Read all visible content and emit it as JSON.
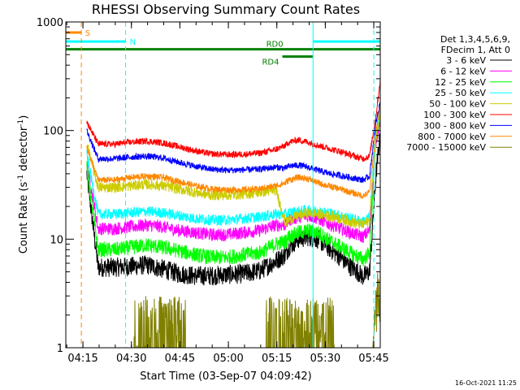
{
  "chart_data": {
    "type": "line",
    "title": "RHESSI Observing Summary Count Rates",
    "xlabel": "Start Time (03-Sep-07 04:09:42)",
    "ylabel_main": "Count Rate (s",
    "ylabel_sup1": "-1",
    "ylabel_mid": " detector",
    "ylabel_sup2": "-1",
    "ylabel_end": ")",
    "yscale": "log",
    "ylim": [
      1,
      1000
    ],
    "xlim_minutes": [
      0,
      97.3
    ],
    "x_ticks": [
      "04:15",
      "04:30",
      "04:45",
      "05:00",
      "05:15",
      "05:30",
      "05:45"
    ],
    "y_ticks": [
      "1",
      "10",
      "100",
      "1000"
    ],
    "legend_header": [
      "Det 1,3,4,5,6,9,",
      "FDecim 1, Att 0"
    ],
    "legend_placement": "right",
    "timestamp": "16-Oct-2021 11:25",
    "data_gap_minutes": [
      0,
      6.5
    ],
    "sample_minutes": [
      6.5,
      10,
      15,
      20,
      25,
      30,
      35,
      40,
      45,
      50,
      55,
      60,
      65,
      68,
      69,
      72,
      75,
      78,
      81,
      85,
      88,
      90,
      92,
      94,
      96,
      97.3
    ],
    "series": [
      {
        "name": "3 - 6 keV",
        "color": "#000000",
        "noise": 0.09,
        "values": [
          40,
          5.5,
          5.5,
          5.6,
          5.8,
          5.3,
          4.8,
          4.6,
          4.6,
          4.7,
          4.8,
          5.1,
          6.3,
          7.2,
          8.5,
          10,
          10.5,
          10,
          8.5,
          6.8,
          5.6,
          5.1,
          4.5,
          5,
          40,
          90
        ]
      },
      {
        "name": "6 - 12 keV",
        "color": "#ff00ff",
        "noise": 0.06,
        "values": [
          50,
          12.5,
          12.5,
          13,
          13.5,
          13,
          12,
          11.5,
          11,
          11,
          11.5,
          12,
          13.5,
          13.5,
          15,
          16,
          16.5,
          15.5,
          14,
          12.5,
          11.5,
          11,
          10.5,
          12,
          80,
          130
        ]
      },
      {
        "name": "12 - 25 keV",
        "color": "#00ff00",
        "noise": 0.07,
        "values": [
          45,
          8,
          8,
          8.4,
          8.8,
          8.4,
          7.8,
          7.2,
          6.8,
          6.8,
          7.2,
          7.5,
          9,
          9.5,
          10.5,
          11.5,
          12,
          11.5,
          10,
          8.5,
          7.5,
          7,
          6.5,
          7.5,
          90,
          140
        ]
      },
      {
        "name": "25 - 50 keV",
        "color": "#00ffff",
        "noise": 0.05,
        "values": [
          60,
          17,
          17,
          17.5,
          18,
          17.5,
          16.5,
          15.5,
          15,
          15,
          15.5,
          16,
          17,
          17,
          17.5,
          18,
          18.5,
          18,
          17.5,
          16.5,
          15.5,
          15,
          14.5,
          16,
          90,
          160
        ]
      },
      {
        "name": "50 - 100 keV",
        "color": "#cccc00",
        "noise": 0.05,
        "values": [
          75,
          30,
          30,
          31,
          32,
          31,
          29,
          27,
          25.5,
          25.5,
          26,
          27,
          28.5,
          14,
          15,
          16.5,
          17.5,
          17,
          16.5,
          15.5,
          14.5,
          14,
          13.5,
          15,
          85,
          150
        ]
      },
      {
        "name": "100 - 300 keV",
        "color": "#ff0000",
        "noise": 0.03,
        "values": [
          120,
          75,
          75,
          78,
          80,
          77,
          71,
          65,
          61,
          60,
          60.5,
          62,
          67,
          73,
          78,
          82,
          78,
          73,
          69,
          64,
          60,
          57,
          55,
          58,
          140,
          290
        ]
      },
      {
        "name": "300 - 800 keV",
        "color": "#0000ff",
        "noise": 0.03,
        "values": [
          100,
          55,
          55,
          57,
          58,
          56,
          51,
          47,
          44,
          43,
          43.5,
          44,
          46,
          45,
          47,
          48,
          46,
          43,
          40.5,
          38.5,
          37,
          36,
          35,
          38,
          120,
          180
        ]
      },
      {
        "name": "800 - 7000 keV",
        "color": "#ff8800",
        "noise": 0.03,
        "values": [
          70,
          35,
          35,
          37,
          38,
          37,
          34,
          31,
          29,
          28.5,
          28.5,
          29,
          31,
          33,
          35,
          37,
          36,
          33,
          31,
          29,
          27,
          26,
          25,
          27,
          100,
          170
        ]
      },
      {
        "name": "7000 - 15000 keV",
        "color": "#808000",
        "noise": 0.0,
        "values": [
          1,
          1,
          1,
          1,
          1,
          1,
          1,
          1,
          1,
          1,
          1,
          1,
          1,
          1,
          1,
          1,
          1,
          1,
          1,
          1,
          1,
          1,
          1,
          1,
          1,
          1
        ]
      }
    ],
    "bursts_7000_15000": [
      [
        21,
        37,
        3
      ],
      [
        62,
        80,
        3
      ],
      [
        80,
        83,
        3
      ],
      [
        95,
        97.3,
        4
      ]
    ],
    "flags": [
      {
        "label": "S",
        "color": "#ff8800",
        "start": 0,
        "end": 4.7,
        "value": 800
      },
      {
        "label": "N",
        "color": "#00ffff",
        "start": 0,
        "end": 18.5,
        "value": 660
      },
      {
        "label": "",
        "color": "#00ffff",
        "start": 76.5,
        "end": 97.3,
        "value": 660
      },
      {
        "label": "RD0",
        "color": "#008000",
        "start": 0,
        "end": 97.3,
        "value": 560
      },
      {
        "label": "RD4",
        "color": "#008000",
        "start": 67,
        "end": 76.5,
        "value": 480
      }
    ],
    "vlines": [
      {
        "x": 4.8,
        "color": "#ff8800",
        "style": "dashed"
      },
      {
        "x": 18.5,
        "color": "#00ffff",
        "style": "dashed"
      },
      {
        "x": 76.5,
        "color": "#00ffff",
        "style": "solid"
      },
      {
        "x": 95.3,
        "color": "#00ffff",
        "style": "dashed"
      }
    ]
  }
}
